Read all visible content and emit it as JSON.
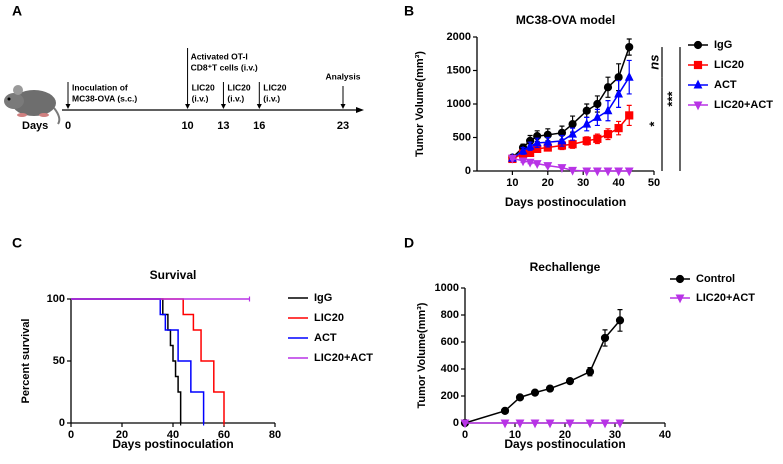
{
  "timeline": {
    "label": "A",
    "axis_label": "Days",
    "xlim": [
      0,
      23
    ],
    "events": [
      {
        "day": 0,
        "lines": [
          "Inoculation of",
          "MC38-OVA (s.c.)"
        ]
      },
      {
        "day": 10,
        "lines": [
          "Activated OT-I",
          "CD8⁺T cells (i.v.)"
        ]
      },
      {
        "day": 10,
        "lines": [
          "LIC20",
          "(i.v.)"
        ]
      },
      {
        "day": 13,
        "lines": [
          "LIC20",
          "(i.v.)"
        ]
      },
      {
        "day": 16,
        "lines": [
          "LIC20",
          "(i.v.)"
        ]
      },
      {
        "day": 23,
        "lines": [
          "Analysis"
        ]
      }
    ]
  },
  "chart_data": [
    {
      "type": "line",
      "label": "B",
      "title": "MC38-OVA model",
      "x_label": "Days postinoculation",
      "y_label": "Tumor Volume(mm³)",
      "x": [
        10,
        13,
        15,
        17,
        20,
        24,
        27,
        31,
        34,
        37,
        40,
        43
      ],
      "xlim": [
        0,
        50
      ],
      "xticks": [
        10,
        20,
        30,
        40,
        50
      ],
      "ylim": [
        0,
        2000
      ],
      "yticks": [
        0,
        500,
        1000,
        1500,
        2000
      ],
      "legend": "right",
      "series": [
        {
          "name": "IgG",
          "color": "#000000",
          "marker": "circle",
          "values": [
            200,
            350,
            450,
            520,
            540,
            570,
            700,
            900,
            1000,
            1250,
            1400,
            1850
          ],
          "errors": [
            30,
            50,
            80,
            80,
            90,
            100,
            120,
            100,
            120,
            150,
            200,
            120
          ]
        },
        {
          "name": "LIC20",
          "color": "#ff0000",
          "marker": "square",
          "values": [
            180,
            260,
            270,
            330,
            350,
            380,
            400,
            450,
            480,
            550,
            640,
            830
          ],
          "errors": [
            30,
            40,
            40,
            50,
            50,
            60,
            60,
            60,
            70,
            80,
            100,
            150
          ]
        },
        {
          "name": "ACT",
          "color": "#0000ff",
          "marker": "triangle-up",
          "values": [
            190,
            300,
            370,
            420,
            430,
            450,
            550,
            700,
            800,
            900,
            1150,
            1400
          ],
          "errors": [
            30,
            50,
            60,
            70,
            70,
            80,
            90,
            100,
            120,
            150,
            200,
            250
          ]
        },
        {
          "name": "LIC20+ACT",
          "color": "#b833e6",
          "marker": "triangle-down",
          "values": [
            190,
            150,
            130,
            110,
            80,
            50,
            10,
            0,
            0,
            0,
            0,
            0
          ],
          "errors": [
            20,
            20,
            20,
            15,
            15,
            10,
            5,
            0,
            0,
            0,
            0,
            0
          ]
        }
      ],
      "annotations": [
        {
          "text": "ns",
          "series": [
            0,
            2
          ]
        },
        {
          "text": "*",
          "series": [
            2,
            3
          ]
        },
        {
          "text": "***",
          "series": [
            0,
            3
          ]
        }
      ]
    },
    {
      "type": "step",
      "label": "C",
      "title": "Survival",
      "x_label": "Days postinoculation",
      "y_label": "Percent survival",
      "xlim": [
        0,
        80
      ],
      "xticks": [
        0,
        20,
        40,
        60,
        80
      ],
      "ylim": [
        0,
        100
      ],
      "yticks": [
        0,
        50,
        100
      ],
      "legend": "right",
      "series": [
        {
          "name": "IgG",
          "color": "#000000",
          "x": [
            0,
            36,
            38,
            39,
            40,
            41,
            42,
            43
          ],
          "values": [
            100,
            87.5,
            75,
            62.5,
            50,
            37.5,
            25,
            0
          ]
        },
        {
          "name": "LIC20",
          "color": "#ff0000",
          "x": [
            0,
            44,
            48,
            51,
            56,
            60
          ],
          "values": [
            100,
            87.5,
            75,
            50,
            25,
            0
          ]
        },
        {
          "name": "ACT",
          "color": "#0000ff",
          "x": [
            0,
            35,
            37,
            42,
            47,
            52
          ],
          "values": [
            100,
            87.5,
            75,
            50,
            25,
            0
          ]
        },
        {
          "name": "LIC20+ACT",
          "color": "#b833e6",
          "x": [
            0,
            70
          ],
          "values": [
            100,
            100
          ]
        }
      ]
    },
    {
      "type": "line",
      "label": "D",
      "title": "Rechallenge",
      "x_label": "Days postinoculation",
      "y_label": "Tumor Volume(mm³)",
      "x": [
        0,
        8,
        11,
        14,
        17,
        21,
        25,
        28,
        31
      ],
      "xlim": [
        0,
        40
      ],
      "xticks": [
        0,
        10,
        20,
        30,
        40
      ],
      "ylim": [
        0,
        1000
      ],
      "yticks": [
        0,
        200,
        400,
        600,
        800,
        1000
      ],
      "legend": "right",
      "series": [
        {
          "name": "Control",
          "color": "#000000",
          "marker": "circle",
          "values": [
            0,
            90,
            190,
            225,
            255,
            310,
            380,
            630,
            760
          ],
          "errors": [
            0,
            5,
            10,
            10,
            10,
            20,
            30,
            60,
            80
          ]
        },
        {
          "name": "LIC20+ACT",
          "color": "#b833e6",
          "marker": "triangle-down",
          "values": [
            0,
            0,
            0,
            0,
            0,
            0,
            0,
            0,
            0
          ],
          "errors": [
            0,
            0,
            0,
            0,
            0,
            0,
            0,
            0,
            0
          ]
        }
      ]
    }
  ]
}
